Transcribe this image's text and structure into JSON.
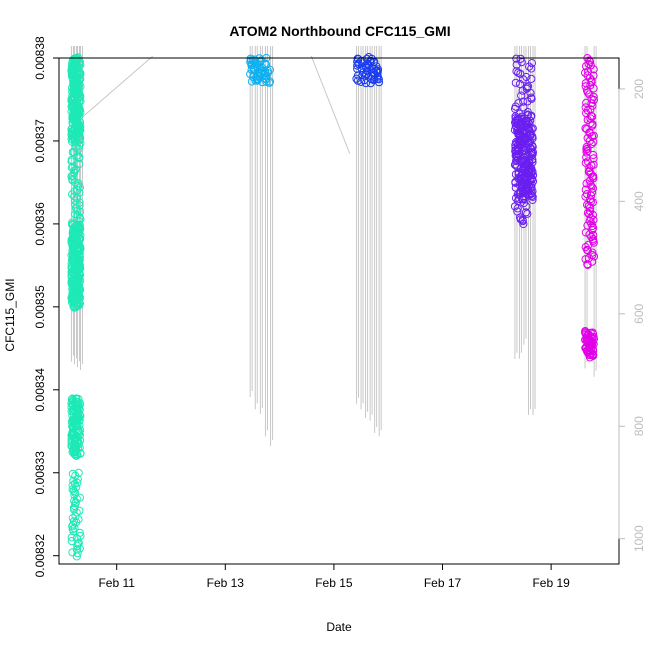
{
  "chart_data": {
    "type": "scatter",
    "title": "ATOM2 Northbound CFC115_GMI",
    "xlabel": "Date",
    "ylabel": "CFC115_GMI",
    "x_axis": {
      "unit": "days",
      "range": [
        "2016-02-09T22:30",
        "2016-02-20T06:00"
      ],
      "ticks": [
        {
          "value": "2016-02-11",
          "label": "Feb 11"
        },
        {
          "value": "2016-02-13",
          "label": "Feb 13"
        },
        {
          "value": "2016-02-15",
          "label": "Feb 15"
        },
        {
          "value": "2016-02-17",
          "label": "Feb 17"
        },
        {
          "value": "2016-02-19",
          "label": "Feb 19"
        }
      ]
    },
    "y_axis": {
      "range": [
        0.008319,
        0.00838
      ],
      "ticks": [
        {
          "value": 0.00832,
          "label": "0.00832"
        },
        {
          "value": 0.00833,
          "label": "0.00833"
        },
        {
          "value": 0.00834,
          "label": "0.00834"
        },
        {
          "value": 0.00835,
          "label": "0.00835"
        },
        {
          "value": 0.00836,
          "label": "0.00836"
        },
        {
          "value": 0.00837,
          "label": "0.00837"
        },
        {
          "value": 0.00838,
          "label": "0.00838"
        }
      ]
    },
    "y2_axis": {
      "range": [
        1045,
        145
      ],
      "ticks": [
        {
          "value": 200,
          "label": "200"
        },
        {
          "value": 400,
          "label": "400"
        },
        {
          "value": 600,
          "label": "600"
        },
        {
          "value": 800,
          "label": "800"
        },
        {
          "value": 1000,
          "label": "1000"
        }
      ],
      "color": "#bdbdbd"
    },
    "grid": false,
    "legend": "none",
    "series": [
      {
        "flight": 1,
        "color": "#1de9b6",
        "x_start": "2016-02-10T04:00",
        "x_end": "2016-02-10T08:00",
        "segments": [
          {
            "y_top": 0.00838,
            "y_bottom": 0.00835,
            "dense": false
          },
          {
            "y_top": 0.00838,
            "y_bottom": 0.00837,
            "dense": true
          },
          {
            "y_top": 0.00836,
            "y_bottom": 0.00835,
            "dense": true
          },
          {
            "y_top": 0.008339,
            "y_bottom": 0.008332,
            "dense": true
          },
          {
            "y_top": 0.00833,
            "y_bottom": 0.00832,
            "dense": false
          }
        ]
      },
      {
        "flight": 2,
        "color": "#0fb0f0",
        "x_start": "2016-02-13T11:00",
        "x_end": "2016-02-13T20:00",
        "segments": [
          {
            "y_top": 0.00838,
            "y_bottom": 0.008377,
            "dense": true
          }
        ]
      },
      {
        "flight": 3,
        "color": "#1a3cf0",
        "x_start": "2016-02-15T10:00",
        "x_end": "2016-02-15T20:00",
        "segments": [
          {
            "y_top": 0.00838,
            "y_bottom": 0.008377,
            "dense": true
          }
        ]
      },
      {
        "flight": 4,
        "color": "#6a1ef0",
        "x_start": "2016-02-18T08:00",
        "x_end": "2016-02-18T16:00",
        "segments": [
          {
            "y_top": 0.00838,
            "y_bottom": 0.00836,
            "dense": false
          },
          {
            "y_top": 0.008373,
            "y_bottom": 0.008363,
            "dense": true
          }
        ]
      },
      {
        "flight": 5,
        "color": "#e100e8",
        "x_start": "2016-02-19T15:00",
        "x_end": "2016-02-19T19:00",
        "segments": [
          {
            "y_top": 0.00838,
            "y_bottom": 0.008355,
            "dense": false
          },
          {
            "y_top": 0.008347,
            "y_bottom": 0.008344,
            "dense": true
          }
        ]
      }
    ],
    "altitude_trace": {
      "color": "#c8c8c8",
      "unit": "hPa",
      "bundles": [
        {
          "x_start": "2016-02-10T04:00",
          "x_end": "2016-02-10T08:00",
          "bottoms": [
            685,
            690,
            695,
            700
          ]
        },
        {
          "x_start": "2016-02-13T11:00",
          "x_end": "2016-02-13T20:00",
          "bottoms": [
            748,
            770,
            778,
            818,
            835
          ]
        },
        {
          "x_start": "2016-02-15T10:00",
          "x_end": "2016-02-15T20:00",
          "bottoms": [
            760,
            770,
            785,
            790,
            812,
            818
          ]
        },
        {
          "x_start": "2016-02-18T08:00",
          "x_end": "2016-02-18T16:00",
          "bottoms": [
            680,
            680,
            655,
            780,
            780
          ]
        },
        {
          "x_start": "2016-02-19T15:00",
          "x_end": "2016-02-19T19:00",
          "bottoms": [
            697,
            712
          ]
        }
      ]
    }
  }
}
